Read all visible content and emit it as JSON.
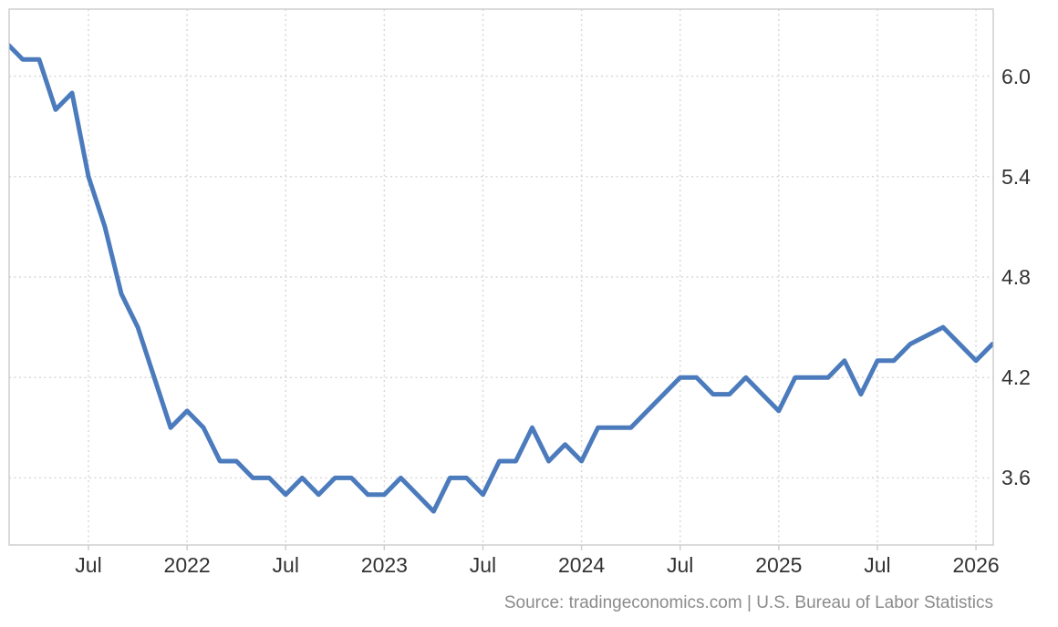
{
  "chart": {
    "source_text": "Source: tradingeconomics.com | U.S. Bureau of Labor Statistics",
    "line_color": "#4b7bbc",
    "grid_color": "#d8d8d8",
    "border_color": "#cfcfcf",
    "axis_label_color": "#333333",
    "source_color": "#8b8b8b",
    "background_color": "#ffffff"
  },
  "chart_data": {
    "type": "line",
    "title": "",
    "xlabel": "",
    "ylabel": "",
    "legend": false,
    "grid": true,
    "y_axis_side": "right",
    "ylim": [
      3.2,
      6.4
    ],
    "y_ticks": [
      "6.0",
      "5.4",
      "4.8",
      "4.2",
      "3.6"
    ],
    "x_ticks": [
      {
        "index": 5,
        "label": "Jul"
      },
      {
        "index": 11,
        "label": "2022"
      },
      {
        "index": 17,
        "label": "Jul"
      },
      {
        "index": 23,
        "label": "2023"
      },
      {
        "index": 29,
        "label": "Jul"
      },
      {
        "index": 35,
        "label": "2024"
      },
      {
        "index": 41,
        "label": "Jul"
      },
      {
        "index": 47,
        "label": "2025"
      },
      {
        "index": 53,
        "label": "Jul"
      },
      {
        "index": 59,
        "label": "2026"
      }
    ],
    "x": [
      "2021-02",
      "2021-03",
      "2021-04",
      "2021-05",
      "2021-06",
      "2021-07",
      "2021-08",
      "2021-09",
      "2021-10",
      "2021-11",
      "2021-12",
      "2022-01",
      "2022-02",
      "2022-03",
      "2022-04",
      "2022-05",
      "2022-06",
      "2022-07",
      "2022-08",
      "2022-09",
      "2022-10",
      "2022-11",
      "2022-12",
      "2023-01",
      "2023-02",
      "2023-03",
      "2023-04",
      "2023-05",
      "2023-06",
      "2023-07",
      "2023-08",
      "2023-09",
      "2023-10",
      "2023-11",
      "2023-12",
      "2024-01",
      "2024-02",
      "2024-03",
      "2024-04",
      "2024-05",
      "2024-06",
      "2024-07",
      "2024-08",
      "2024-09",
      "2024-10",
      "2024-11",
      "2024-12",
      "2025-01",
      "2025-02",
      "2025-03",
      "2025-04",
      "2025-05",
      "2025-06",
      "2025-07",
      "2025-08",
      "2025-09",
      "2025-10",
      "2025-11",
      "2025-12",
      "2026-01",
      "2026-02"
    ],
    "values": [
      6.2,
      6.1,
      6.1,
      5.8,
      5.9,
      5.4,
      5.1,
      4.7,
      4.5,
      4.2,
      3.9,
      4.0,
      3.9,
      3.7,
      3.7,
      3.6,
      3.6,
      3.5,
      3.6,
      3.5,
      3.6,
      3.6,
      3.5,
      3.5,
      3.6,
      3.5,
      3.4,
      3.6,
      3.6,
      3.5,
      3.7,
      3.7,
      3.9,
      3.7,
      3.8,
      3.7,
      3.9,
      3.9,
      3.9,
      4.0,
      4.1,
      4.2,
      4.2,
      4.1,
      4.1,
      4.2,
      4.1,
      4.0,
      4.2,
      4.2,
      4.2,
      4.3,
      4.1,
      4.3,
      4.3,
      4.4,
      null,
      4.5,
      4.4,
      4.3,
      4.4
    ]
  }
}
